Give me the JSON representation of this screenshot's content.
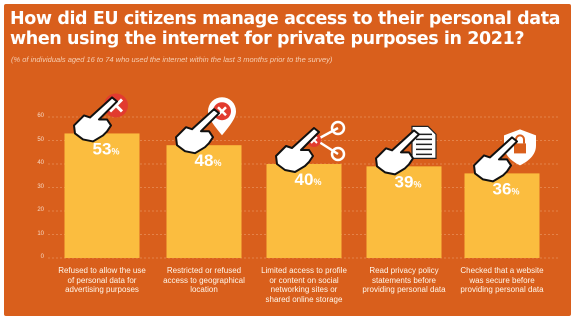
{
  "title": "How did EU citizens manage access to their personal data when using the internet for private purposes in 2021?",
  "subtitle": "(% of individuals aged 16 to 74 who used the internet within the last 3 months prior to the survey)",
  "colors": {
    "background": "#d95f1c",
    "bar": "#fbbd3f",
    "bar_text": "#ffffff",
    "grid": "#f0a878",
    "icon_red": "#e23b2f"
  },
  "chart_data": {
    "type": "bar",
    "categories": [
      "Refused to allow the use of personal data for advertising purposes",
      "Restricted or refused access to geographical location",
      "Limited access to profile or content on social networking sites or shared online storage",
      "Read privacy policy statements before providing personal data",
      "Checked that a website was secure before providing personal data"
    ],
    "values": [
      53,
      48,
      40,
      39,
      36
    ],
    "value_labels": [
      "53",
      "48",
      "40",
      "39",
      "36"
    ],
    "unit": "%",
    "ylim": [
      0,
      60
    ],
    "yticks": [
      "0",
      "10",
      "20",
      "30",
      "40",
      "50",
      "60"
    ],
    "grid": true,
    "icons": [
      "pointing-hand-with-red-x-icon",
      "pointing-hand-with-location-pin-x-icon",
      "pointing-hand-with-share-network-icon",
      "pointing-hand-with-document-icon",
      "pointing-hand-with-padlock-shield-icon"
    ]
  }
}
